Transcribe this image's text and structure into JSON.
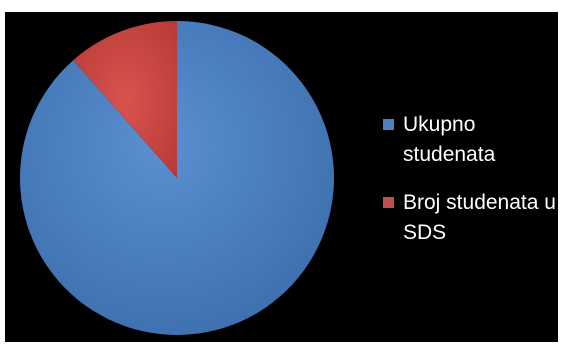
{
  "chart_data": {
    "type": "pie",
    "title": "",
    "series": [
      {
        "name": "Ukupno studenata",
        "value": 88.5,
        "color": "#4f81bd"
      },
      {
        "name": "Broj studenata u SDS",
        "value": 11.5,
        "color": "#c0504d"
      }
    ],
    "legend_position": "right",
    "background": "#000000"
  }
}
